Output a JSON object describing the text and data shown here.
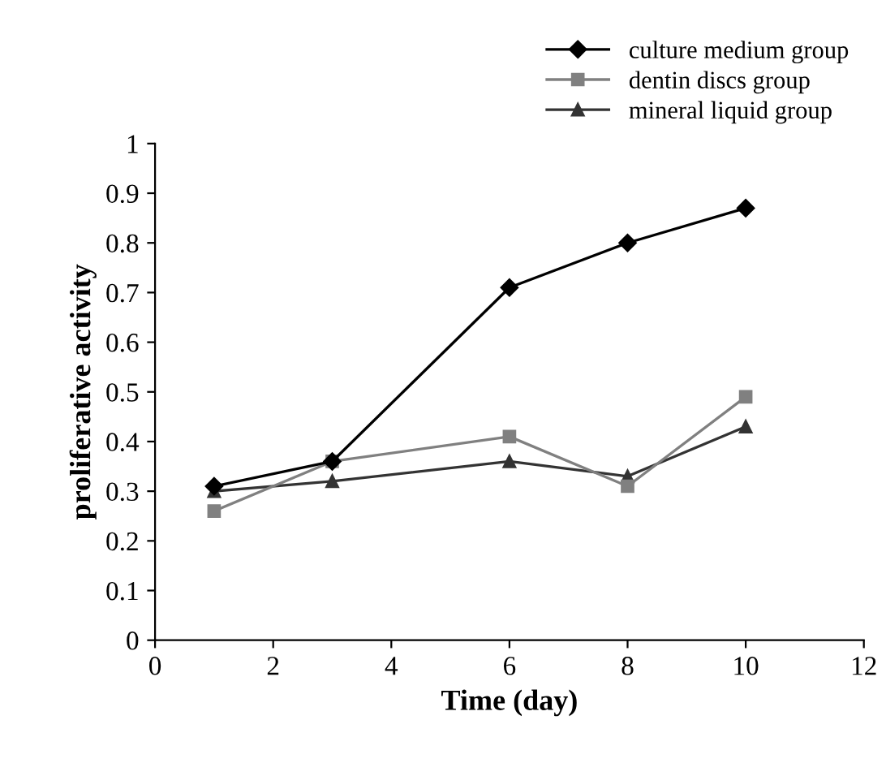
{
  "chart_data": {
    "type": "line",
    "xlabel": "Time (day)",
    "ylabel": "proliferative activity",
    "x": [
      1,
      3,
      6,
      8,
      10
    ],
    "series": [
      {
        "name": "culture medium group",
        "color": "#000000",
        "marker": "diamond",
        "values": [
          0.31,
          0.36,
          0.71,
          0.8,
          0.87
        ]
      },
      {
        "name": "dentin discs group",
        "color": "#808080",
        "marker": "square",
        "values": [
          0.26,
          0.36,
          0.41,
          0.31,
          0.49
        ]
      },
      {
        "name": "mineral liquid group",
        "color": "#333333",
        "marker": "triangle",
        "values": [
          0.3,
          0.32,
          0.36,
          0.33,
          0.43
        ]
      }
    ],
    "xlim": [
      0,
      12
    ],
    "xticks": [
      0,
      2,
      4,
      6,
      8,
      10,
      12
    ],
    "ylim": [
      0,
      1
    ],
    "yticks": [
      0,
      0.1,
      0.2,
      0.3,
      0.4,
      0.5,
      0.6,
      0.7,
      0.8,
      0.9,
      1
    ],
    "grid": false,
    "legend": "top right",
    "line_style": "solid"
  }
}
